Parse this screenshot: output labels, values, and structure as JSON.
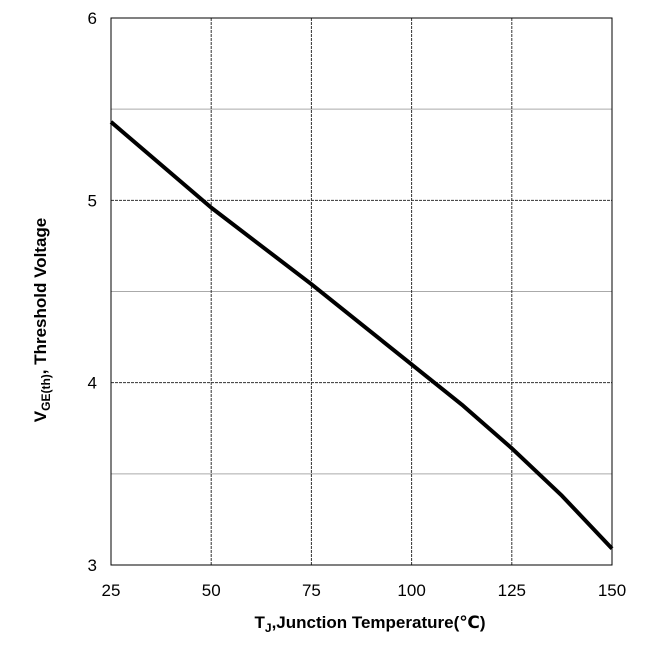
{
  "chart_data": {
    "type": "line",
    "x_label": {
      "main": "T",
      "sub": "J",
      "rest": ",Junction Temperature(℃)"
    },
    "y_label": {
      "main": "V",
      "sub": "GE(th)",
      "rest": ", Threshold Voltage"
    },
    "x": [
      25,
      50,
      62.5,
      75,
      87.5,
      100,
      112.5,
      125,
      137.5,
      150
    ],
    "series": [
      {
        "color": "#000000",
        "values": [
          5.43,
          4.96,
          4.75,
          4.54,
          4.32,
          4.1,
          3.88,
          3.64,
          3.38,
          3.09
        ]
      }
    ],
    "xlim": [
      25,
      150
    ],
    "xticks": [
      25,
      50,
      75,
      100,
      125,
      150
    ],
    "ylim": [
      3,
      6
    ],
    "yticks": [
      3,
      4,
      5,
      6
    ],
    "yminorticks": [
      3.5,
      4.5,
      5.5
    ],
    "grid": true
  }
}
